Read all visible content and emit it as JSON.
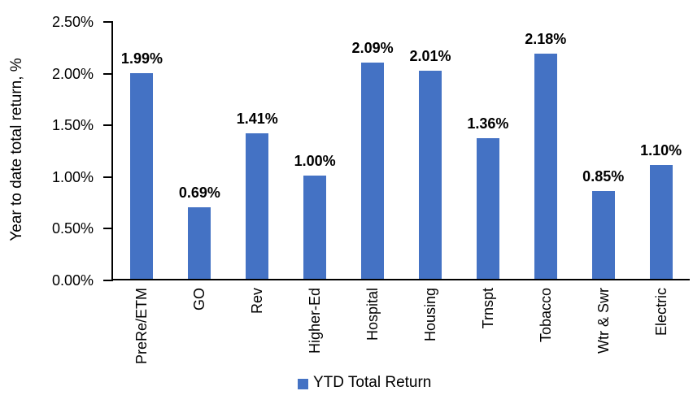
{
  "chart_data": {
    "type": "bar",
    "title": "",
    "ylabel": "Year to date total return, %",
    "xlabel": "",
    "categories": [
      "PreRe/ETM",
      "GO",
      "Rev",
      "Higher-Ed",
      "Hospital",
      "Housing",
      "Trnspt",
      "Tobacco",
      "Wtr & Swr",
      "Electric"
    ],
    "series": [
      {
        "name": "YTD Total Return",
        "values": [
          1.99,
          0.69,
          1.41,
          1.0,
          2.09,
          2.01,
          1.36,
          2.18,
          0.85,
          1.1
        ],
        "data_labels": [
          "1.99%",
          "0.69%",
          "1.41%",
          "1.00%",
          "2.09%",
          "2.01%",
          "1.36%",
          "2.18%",
          "0.85%",
          "1.10%"
        ],
        "color": "#4472C4"
      }
    ],
    "y_ticks": [
      {
        "label": "2.50%",
        "value": 2.5
      },
      {
        "label": "2.00%",
        "value": 2.0
      },
      {
        "label": "1.50%",
        "value": 1.5
      },
      {
        "label": "1.00%",
        "value": 1.0
      },
      {
        "label": "0.50%",
        "value": 0.5
      },
      {
        "label": "0.00%",
        "value": 0.0
      }
    ],
    "ylim": [
      0,
      2.5
    ],
    "grid": false,
    "legend_position": "bottom",
    "legend": {
      "label": "YTD Total Return",
      "swatch_color": "#4472C4"
    }
  }
}
